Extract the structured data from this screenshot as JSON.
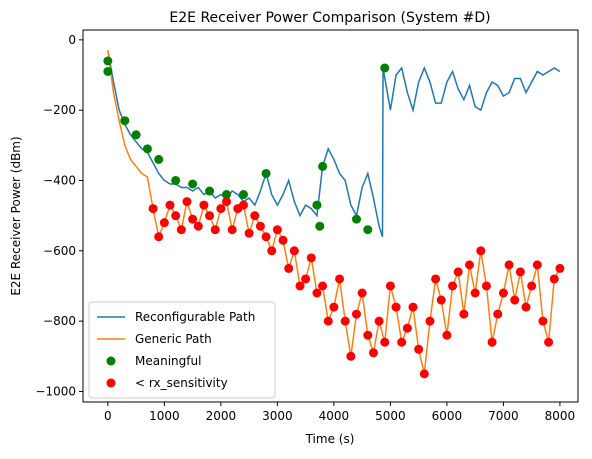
{
  "chart_data": {
    "type": "line",
    "title": "E2E Receiver Power Comparison (System #D)",
    "x_label": "Time (s)",
    "y_label": "E2E Receiver Power (dBm)",
    "xlim": [
      -440,
      8320
    ],
    "ylim": [
      -1030,
      28
    ],
    "xticks": [
      0,
      1000,
      2000,
      3000,
      4000,
      5000,
      6000,
      7000,
      8000
    ],
    "yticks": [
      {
        "value": 0,
        "label": "0"
      },
      {
        "value": -200,
        "label": "−200"
      },
      {
        "value": -400,
        "label": "−400"
      },
      {
        "value": -600,
        "label": "−600"
      },
      {
        "value": -800,
        "label": "−800"
      },
      {
        "value": -1000,
        "label": "−1000"
      }
    ],
    "legend": "lower left",
    "series": [
      {
        "name": "Reconfigurable Path",
        "kind": "line",
        "color": "#1f77b4",
        "x": [
          0,
          100,
          200,
          300,
          400,
          500,
          600,
          700,
          800,
          900,
          1000,
          1100,
          1200,
          1300,
          1400,
          1500,
          1600,
          1700,
          1800,
          1900,
          2000,
          2100,
          2200,
          2300,
          2400,
          2500,
          2600,
          2700,
          2800,
          2900,
          3000,
          3100,
          3200,
          3300,
          3400,
          3500,
          3600,
          3700,
          3800,
          3900,
          4000,
          4100,
          4200,
          4300,
          4400,
          4500,
          4600,
          4700,
          4800,
          4860,
          4870,
          5000,
          5100,
          5200,
          5300,
          5400,
          5500,
          5600,
          5700,
          5800,
          5900,
          6000,
          6100,
          6200,
          6300,
          6400,
          6500,
          6600,
          6700,
          6800,
          6900,
          7000,
          7100,
          7200,
          7300,
          7400,
          7500,
          7600,
          7700,
          7800,
          7900,
          8000
        ],
        "values": [
          -30,
          -120,
          -200,
          -240,
          -270,
          -290,
          -310,
          -320,
          -350,
          -380,
          -400,
          -410,
          -410,
          -420,
          -420,
          -430,
          -420,
          -440,
          -430,
          -450,
          -440,
          -450,
          -430,
          -440,
          -460,
          -450,
          -470,
          -430,
          -380,
          -440,
          -470,
          -440,
          -400,
          -460,
          -500,
          -470,
          -480,
          -500,
          -360,
          -310,
          -340,
          -380,
          -400,
          -470,
          -500,
          -420,
          -380,
          -450,
          -530,
          -560,
          -80,
          -200,
          -100,
          -80,
          -150,
          -200,
          -120,
          -80,
          -120,
          -180,
          -180,
          -120,
          -90,
          -140,
          -170,
          -130,
          -190,
          -200,
          -150,
          -120,
          -130,
          -160,
          -150,
          -110,
          -110,
          -150,
          -120,
          -90,
          -100,
          -90,
          -80,
          -90
        ]
      },
      {
        "name": "Generic Path",
        "kind": "line",
        "color": "#ff7f0e",
        "x": [
          0,
          100,
          200,
          300,
          400,
          500,
          600,
          700,
          800,
          900,
          1000,
          1100,
          1200,
          1300,
          1400,
          1500,
          1600,
          1700,
          1800,
          1900,
          2000,
          2100,
          2200,
          2300,
          2400,
          2500,
          2600,
          2700,
          2800,
          2900,
          3000,
          3100,
          3200,
          3300,
          3400,
          3500,
          3600,
          3700,
          3800,
          3900,
          4000,
          4100,
          4200,
          4300,
          4400,
          4500,
          4600,
          4700,
          4800,
          4900,
          5000,
          5100,
          5200,
          5300,
          5400,
          5500,
          5600,
          5700,
          5800,
          5900,
          6000,
          6100,
          6200,
          6300,
          6400,
          6500,
          6600,
          6700,
          6800,
          6900,
          7000,
          7100,
          7200,
          7300,
          7400,
          7500,
          7600,
          7700,
          7800,
          7900,
          8000
        ],
        "values": [
          -30,
          -150,
          -230,
          -300,
          -340,
          -360,
          -380,
          -390,
          -480,
          -560,
          -520,
          -470,
          -500,
          -540,
          -460,
          -510,
          -530,
          -470,
          -500,
          -540,
          -480,
          -460,
          -540,
          -480,
          -470,
          -550,
          -500,
          -530,
          -560,
          -600,
          -540,
          -570,
          -650,
          -600,
          -700,
          -680,
          -620,
          -720,
          -700,
          -800,
          -760,
          -680,
          -800,
          -900,
          -780,
          -720,
          -840,
          -890,
          -800,
          -860,
          -700,
          -760,
          -860,
          -820,
          -760,
          -880,
          -950,
          -800,
          -680,
          -740,
          -840,
          -700,
          -660,
          -780,
          -640,
          -720,
          -600,
          -700,
          -860,
          -780,
          -720,
          -640,
          -740,
          -660,
          -760,
          -700,
          -640,
          -800,
          -860,
          -680,
          -650
        ]
      },
      {
        "name": "Meaningful",
        "kind": "scatter",
        "color": "green",
        "x": [
          0,
          0,
          300,
          500,
          700,
          900,
          1200,
          1500,
          1800,
          2100,
          2400,
          2800,
          3700,
          3750,
          3800,
          4400,
          4600,
          4900
        ],
        "values": [
          -60,
          -90,
          -230,
          -270,
          -310,
          -340,
          -400,
          -410,
          -430,
          -440,
          -440,
          -380,
          -470,
          -530,
          -360,
          -510,
          -540,
          -80
        ]
      },
      {
        "name": "< rx_sensitivity",
        "kind": "scatter",
        "color": "red",
        "x": [
          800,
          900,
          1000,
          1100,
          1200,
          1300,
          1400,
          1500,
          1600,
          1700,
          1800,
          1900,
          2000,
          2100,
          2200,
          2300,
          2400,
          2500,
          2600,
          2700,
          2800,
          2900,
          3000,
          3100,
          3200,
          3300,
          3400,
          3500,
          3600,
          3700,
          3800,
          3900,
          4000,
          4100,
          4200,
          4300,
          4400,
          4500,
          4600,
          4700,
          4800,
          4900,
          5000,
          5100,
          5200,
          5300,
          5400,
          5500,
          5600,
          5700,
          5800,
          5900,
          6000,
          6100,
          6200,
          6300,
          6400,
          6500,
          6600,
          6700,
          6800,
          6900,
          7000,
          7100,
          7200,
          7300,
          7400,
          7500,
          7600,
          7700,
          7800,
          7900,
          8000
        ],
        "values": [
          -480,
          -560,
          -520,
          -470,
          -500,
          -540,
          -460,
          -510,
          -530,
          -470,
          -500,
          -540,
          -480,
          -460,
          -540,
          -480,
          -470,
          -550,
          -500,
          -530,
          -560,
          -600,
          -540,
          -570,
          -650,
          -600,
          -700,
          -680,
          -620,
          -720,
          -700,
          -800,
          -760,
          -680,
          -800,
          -900,
          -780,
          -720,
          -840,
          -890,
          -800,
          -860,
          -700,
          -760,
          -860,
          -820,
          -760,
          -880,
          -950,
          -800,
          -680,
          -740,
          -840,
          -700,
          -660,
          -780,
          -640,
          -720,
          -600,
          -700,
          -860,
          -780,
          -720,
          -640,
          -740,
          -660,
          -760,
          -700,
          -640,
          -800,
          -860,
          -680,
          -650
        ]
      }
    ]
  }
}
